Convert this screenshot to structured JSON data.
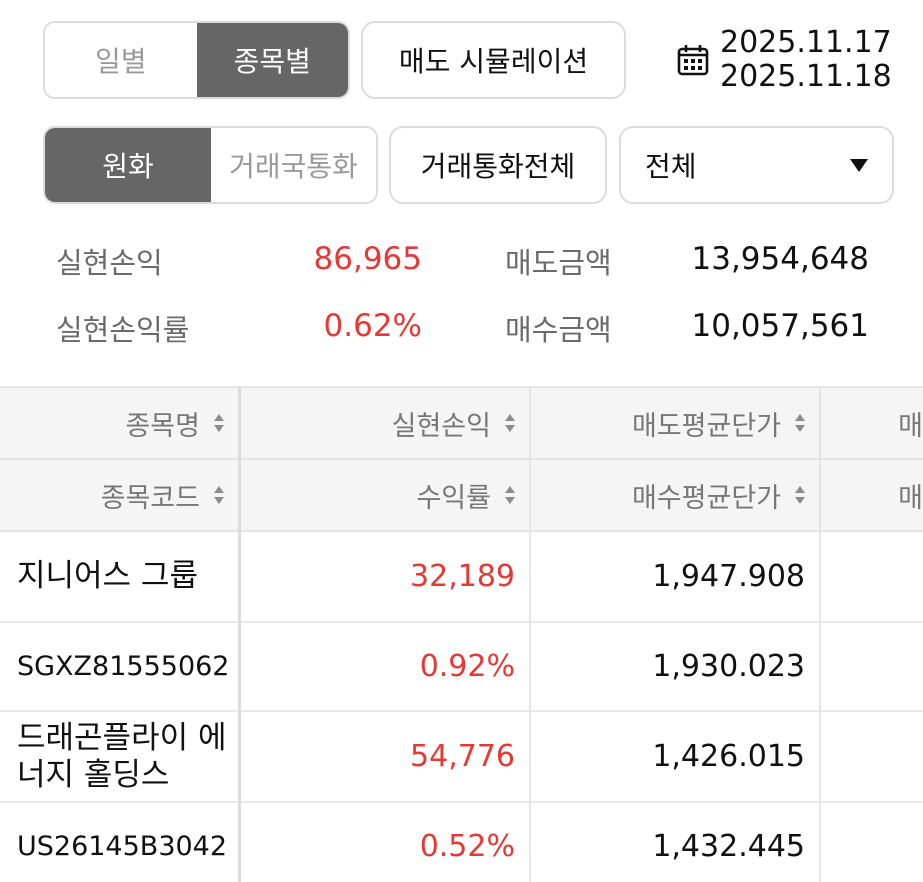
{
  "view_tabs": {
    "daily": "일별",
    "by_stock": "종목별",
    "active": "by_stock"
  },
  "simulation_button": "매도 시뮬레이션",
  "date_range": {
    "start": "2025.11.17",
    "end": "2025.11.18"
  },
  "currency_tabs": {
    "krw": "원화",
    "trade_currency": "거래국통화",
    "active": "krw"
  },
  "all_currency_button": "거래통화전체",
  "filter_select": {
    "value": "전체"
  },
  "summary": {
    "realized_pnl": {
      "label": "실현손익",
      "value": "86,965"
    },
    "realized_rate": {
      "label": "실현손익률",
      "value": "0.62%"
    },
    "sell_amount": {
      "label": "매도금액",
      "value": "13,954,648"
    },
    "buy_amount": {
      "label": "매수금액",
      "value": "10,057,561"
    }
  },
  "table": {
    "header1": [
      "종목명",
      "실현손익",
      "매도평균단가",
      "매"
    ],
    "header2": [
      "종목코드",
      "수익률",
      "매수평균단가",
      "매"
    ],
    "rows": [
      {
        "name": "지니어스 그룹",
        "code": "SGXZ81555062",
        "pnl": "32,189",
        "rate": "0.92%",
        "sell_avg": "1,947.908",
        "buy_avg": "1,930.023"
      },
      {
        "name": "드래곤플라이 에너지 홀딩스",
        "code": "US26145B3042",
        "pnl": "54,776",
        "rate": "0.52%",
        "sell_avg": "1,426.015",
        "buy_avg": "1,432.445"
      }
    ]
  },
  "colors": {
    "profit": "#e53935",
    "active_tab": "#666666"
  }
}
